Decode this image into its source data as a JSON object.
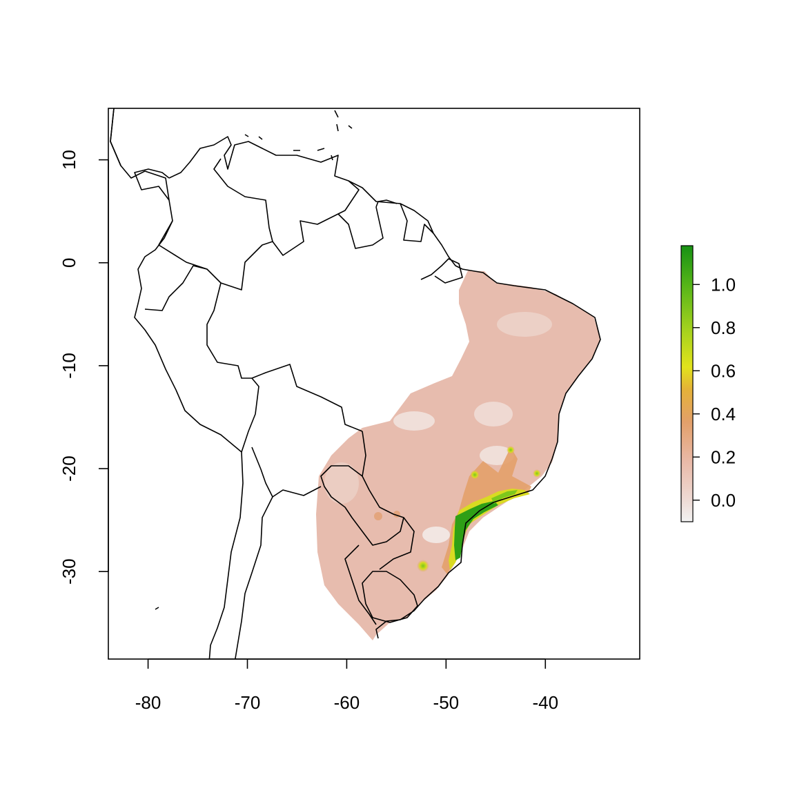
{
  "map": {
    "x_ticks": [
      -80,
      -70,
      -60,
      -50,
      -40
    ],
    "y_ticks": [
      10,
      0,
      -10,
      -20,
      -30
    ],
    "x_range": [
      -84,
      -30.5
    ],
    "y_range": [
      -38.5,
      15
    ]
  },
  "legend": {
    "ticks": [
      0.0,
      0.2,
      0.4,
      0.6,
      0.8,
      1.0
    ],
    "tick_labels": [
      "0.0",
      "0.2",
      "0.4",
      "0.6",
      "0.8",
      "1.0"
    ],
    "range": [
      -0.1,
      1.18
    ],
    "colors": [
      "#f2f2f2",
      "#ebc7bd",
      "#e3a06a",
      "#e6b82d",
      "#e2e31c",
      "#a3d21e",
      "#5fbb18",
      "#1a9214"
    ]
  },
  "colors": {
    "low": "#e7b9ab",
    "light": "#f0e1dc",
    "mid": "#e3a06a",
    "high": "#6cc31e",
    "top": "#229a14"
  }
}
